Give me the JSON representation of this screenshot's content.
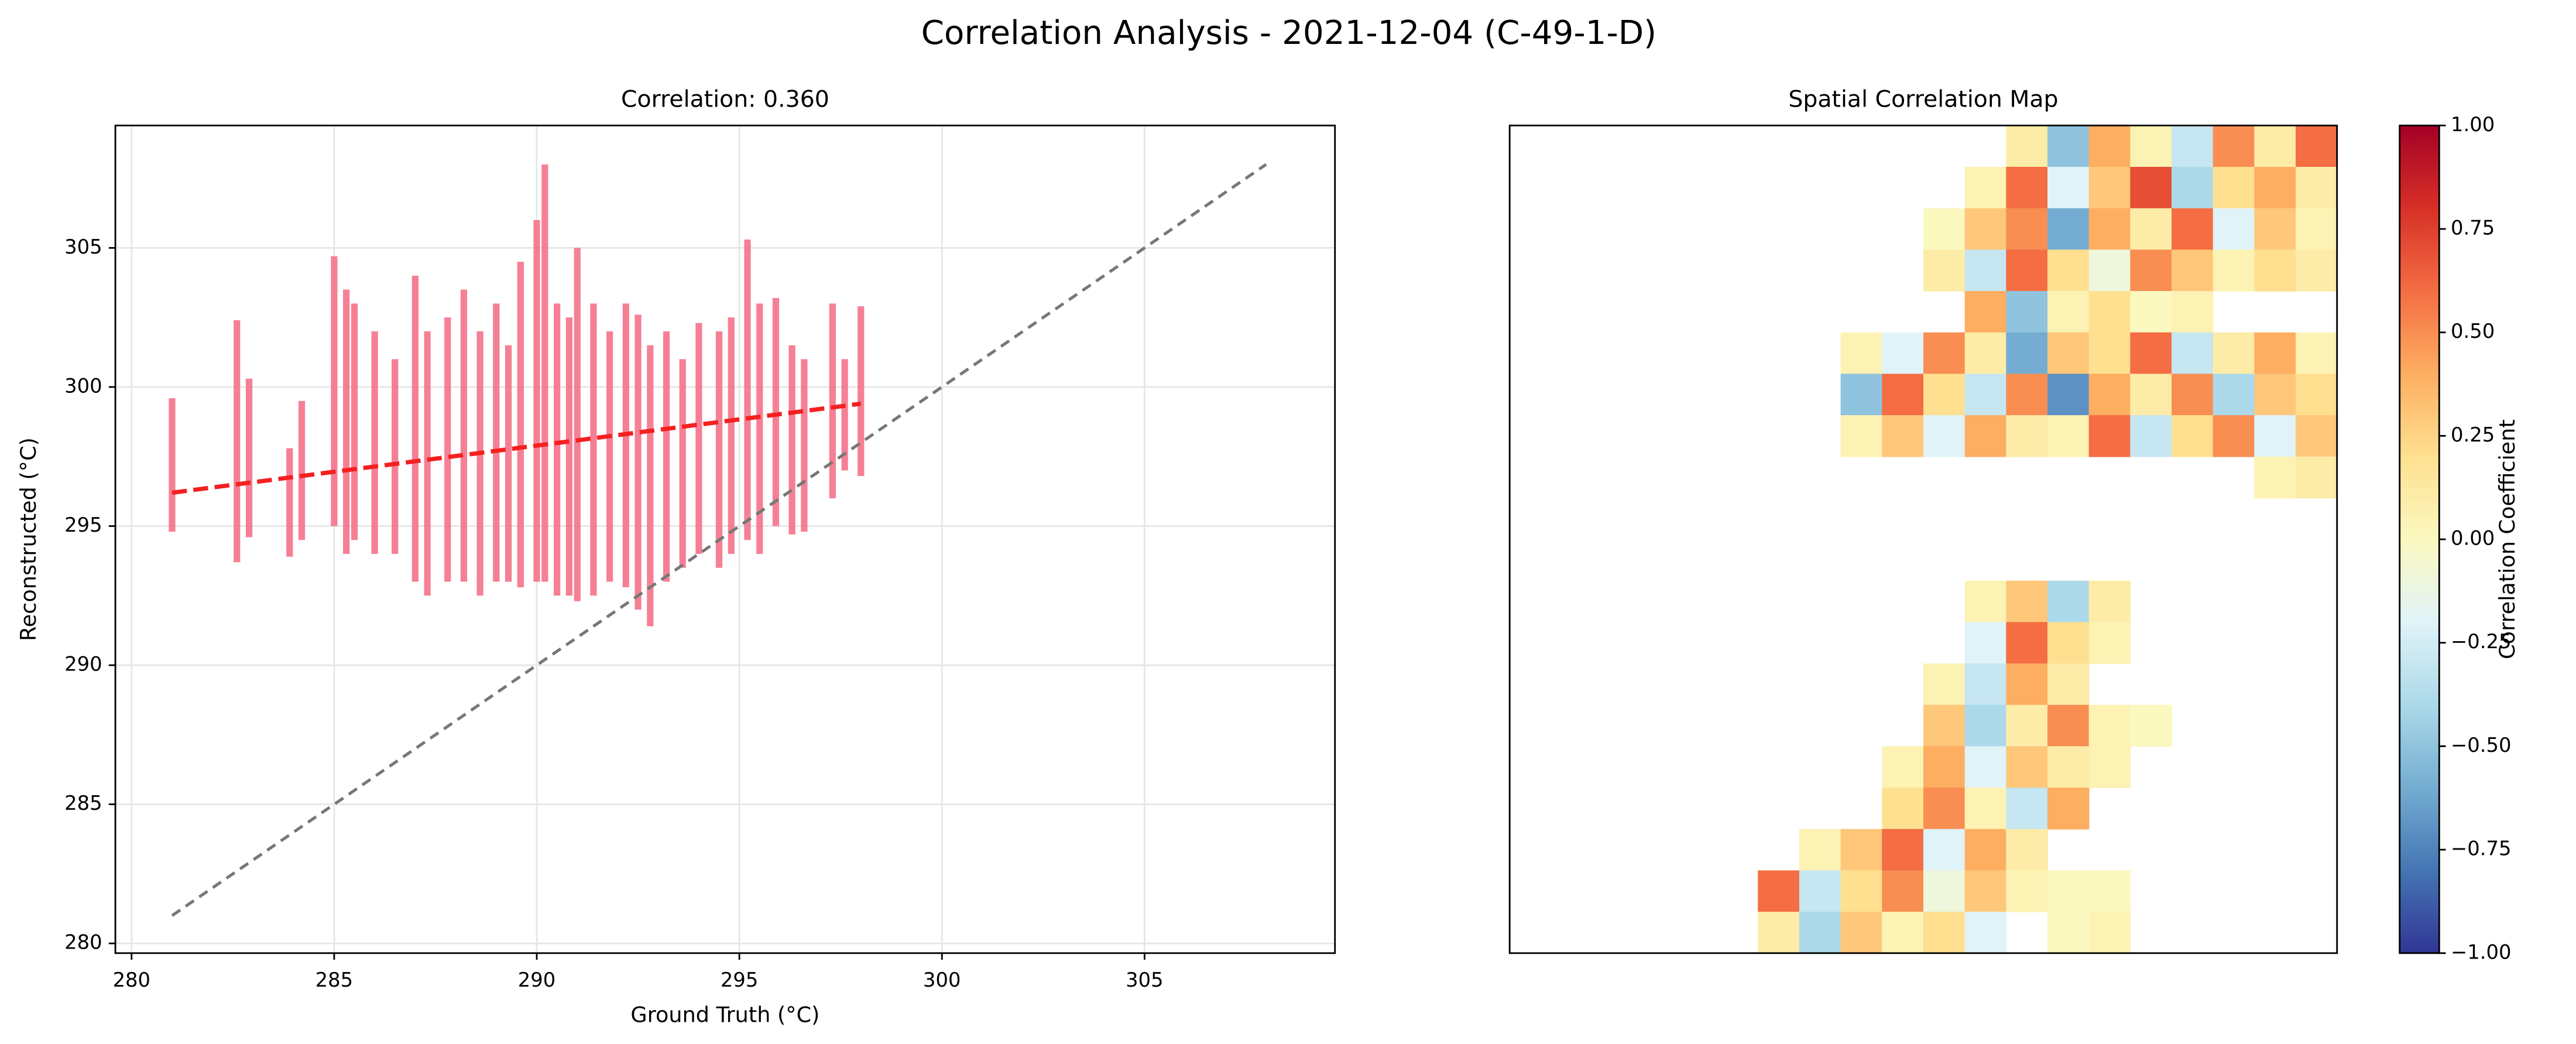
{
  "title": "Correlation Analysis - 2021-12-04 (C-49-1-D)",
  "chart_data": [
    {
      "type": "range-scatter",
      "title": "Correlation: 0.360",
      "xlabel": "Ground Truth (°C)",
      "ylabel": "Reconstructed (°C)",
      "color": "#f4728a",
      "x": [
        281,
        282.6,
        282.9,
        283.9,
        284.2,
        285,
        285.3,
        285.5,
        286,
        286.5,
        287,
        287.3,
        287.8,
        288.2,
        288.6,
        289,
        289.3,
        289.6,
        290,
        290.2,
        290.5,
        290.8,
        291,
        291.4,
        291.8,
        292.2,
        292.5,
        292.8,
        293.2,
        293.6,
        294,
        294.5,
        294.8,
        295.2,
        295.5,
        295.9,
        296.3,
        296.6,
        297.3,
        297.6,
        298
      ],
      "low": [
        294.8,
        293.7,
        294.6,
        293.9,
        294.5,
        295,
        294,
        294.5,
        294,
        294,
        293,
        292.5,
        293,
        293,
        292.5,
        293,
        293,
        292.8,
        293,
        293,
        292.5,
        292.5,
        292.3,
        292.5,
        293,
        292.8,
        292,
        291.4,
        293,
        293.5,
        294,
        293.5,
        294,
        294.5,
        294,
        295,
        294.7,
        294.8,
        296,
        297,
        296.8
      ],
      "high": [
        299.6,
        302.4,
        300.3,
        297.8,
        299.5,
        304.7,
        303.5,
        303,
        302,
        301,
        304,
        302,
        302.5,
        303.5,
        302,
        303,
        301.5,
        304.5,
        306,
        308,
        303,
        302.5,
        305,
        303,
        302,
        303,
        302.6,
        301.5,
        302,
        301,
        302.3,
        302,
        302.5,
        305.3,
        303,
        303.2,
        301.5,
        301,
        303,
        301,
        302.9
      ],
      "fit": {
        "x": [
          281,
          298
        ],
        "y": [
          296.2,
          299.4
        ],
        "color": "#f42020"
      },
      "identity": {
        "x": [
          281,
          308
        ],
        "y": [
          281,
          308
        ],
        "color": "#777777"
      },
      "xlim": [
        279.6,
        309.7
      ],
      "ylim": [
        279.65,
        309.4
      ],
      "xticks": [
        280,
        285,
        290,
        295,
        300,
        305
      ],
      "yticks": [
        280,
        285,
        290,
        295,
        300,
        305
      ],
      "grid": true
    },
    {
      "type": "heatmap",
      "title": "Spatial Correlation Map",
      "clim": [
        -1,
        1
      ],
      "colorscale": [
        "#313695",
        "#4575b4",
        "#74add1",
        "#abd9e9",
        "#e0f3f8",
        "#fbf8c0",
        "#fee090",
        "#fdae61",
        "#f46d43",
        "#d73027",
        "#a50026"
      ],
      "colorbar_label": "Correlation Coefficient",
      "colorbar_ticks": [
        {
          "value": -1,
          "label": "−1.00"
        },
        {
          "value": -0.75,
          "label": "−0.75"
        },
        {
          "value": -0.5,
          "label": "−0.50"
        },
        {
          "value": -0.25,
          "label": "−0.25"
        },
        {
          "value": 0,
          "label": "0.00"
        },
        {
          "value": 0.25,
          "label": "0.25"
        },
        {
          "value": 0.5,
          "label": "0.50"
        },
        {
          "value": 0.75,
          "label": "0.75"
        },
        {
          "value": 1,
          "label": "1.00"
        }
      ],
      "values": [
        [
          null,
          null,
          null,
          null,
          null,
          null,
          null,
          null,
          null,
          null,
          null,
          null,
          0.1,
          -0.5,
          0.4,
          0.05,
          -0.3,
          0.5,
          0.1,
          0.6
        ],
        [
          null,
          null,
          null,
          null,
          null,
          null,
          null,
          null,
          null,
          null,
          null,
          0.05,
          0.6,
          -0.2,
          0.3,
          0.7,
          -0.4,
          0.2,
          0.4,
          0.1
        ],
        [
          null,
          null,
          null,
          null,
          null,
          null,
          null,
          null,
          null,
          null,
          0.0,
          0.3,
          0.5,
          -0.6,
          0.4,
          0.1,
          0.6,
          -0.2,
          0.3,
          0.05
        ],
        [
          null,
          null,
          null,
          null,
          null,
          null,
          null,
          null,
          null,
          null,
          0.1,
          -0.3,
          0.6,
          0.2,
          -0.1,
          0.5,
          0.3,
          0.05,
          0.2,
          0.1
        ],
        [
          null,
          null,
          null,
          null,
          null,
          null,
          null,
          null,
          null,
          null,
          null,
          0.4,
          -0.5,
          0.05,
          0.2,
          0.0,
          0.05,
          null,
          null,
          null
        ],
        [
          null,
          null,
          null,
          null,
          null,
          null,
          null,
          null,
          0.05,
          -0.2,
          0.5,
          0.1,
          -0.6,
          0.3,
          0.2,
          0.6,
          -0.3,
          0.1,
          0.4,
          0.05
        ],
        [
          null,
          null,
          null,
          null,
          null,
          null,
          null,
          null,
          -0.5,
          0.6,
          0.2,
          -0.3,
          0.5,
          -0.7,
          0.4,
          0.1,
          0.5,
          -0.4,
          0.3,
          0.2
        ],
        [
          null,
          null,
          null,
          null,
          null,
          null,
          null,
          null,
          0.05,
          0.3,
          -0.2,
          0.4,
          0.1,
          0.05,
          0.6,
          -0.3,
          0.2,
          0.5,
          -0.2,
          0.3
        ],
        [
          null,
          null,
          null,
          null,
          null,
          null,
          null,
          null,
          null,
          null,
          null,
          null,
          null,
          null,
          null,
          null,
          null,
          null,
          0.05,
          0.1
        ],
        [
          null,
          null,
          null,
          null,
          null,
          null,
          null,
          null,
          null,
          null,
          null,
          null,
          null,
          null,
          null,
          null,
          null,
          null,
          null,
          null
        ],
        [
          null,
          null,
          null,
          null,
          null,
          null,
          null,
          null,
          null,
          null,
          null,
          null,
          null,
          null,
          null,
          null,
          null,
          null,
          null,
          null
        ],
        [
          null,
          null,
          null,
          null,
          null,
          null,
          null,
          null,
          null,
          null,
          null,
          0.05,
          0.3,
          -0.4,
          0.1,
          null,
          null,
          null,
          null,
          null
        ],
        [
          null,
          null,
          null,
          null,
          null,
          null,
          null,
          null,
          null,
          null,
          null,
          -0.2,
          0.6,
          0.2,
          0.05,
          null,
          null,
          null,
          null,
          null
        ],
        [
          null,
          null,
          null,
          null,
          null,
          null,
          null,
          null,
          null,
          null,
          0.05,
          -0.3,
          0.4,
          0.1,
          null,
          null,
          null,
          null,
          null,
          null
        ],
        [
          null,
          null,
          null,
          null,
          null,
          null,
          null,
          null,
          null,
          null,
          0.3,
          -0.4,
          0.1,
          0.5,
          0.05,
          0.0,
          null,
          null,
          null,
          null
        ],
        [
          null,
          null,
          null,
          null,
          null,
          null,
          null,
          null,
          null,
          0.05,
          0.4,
          -0.2,
          0.3,
          0.1,
          0.05,
          null,
          null,
          null,
          null,
          null
        ],
        [
          null,
          null,
          null,
          null,
          null,
          null,
          null,
          null,
          null,
          0.2,
          0.5,
          0.05,
          -0.3,
          0.4,
          null,
          null,
          null,
          null,
          null,
          null
        ],
        [
          null,
          null,
          null,
          null,
          null,
          null,
          null,
          0.05,
          0.3,
          0.6,
          -0.2,
          0.4,
          0.1,
          null,
          null,
          null,
          null,
          null,
          null,
          null
        ],
        [
          null,
          null,
          null,
          null,
          null,
          null,
          0.6,
          -0.3,
          0.2,
          0.5,
          -0.1,
          0.3,
          0.05,
          0.0,
          0.0,
          null,
          null,
          null,
          null,
          null
        ],
        [
          null,
          null,
          null,
          null,
          null,
          null,
          0.1,
          -0.4,
          0.3,
          0.05,
          0.2,
          -0.2,
          null,
          0.0,
          0.05,
          null,
          null,
          null,
          null,
          null
        ]
      ]
    }
  ]
}
